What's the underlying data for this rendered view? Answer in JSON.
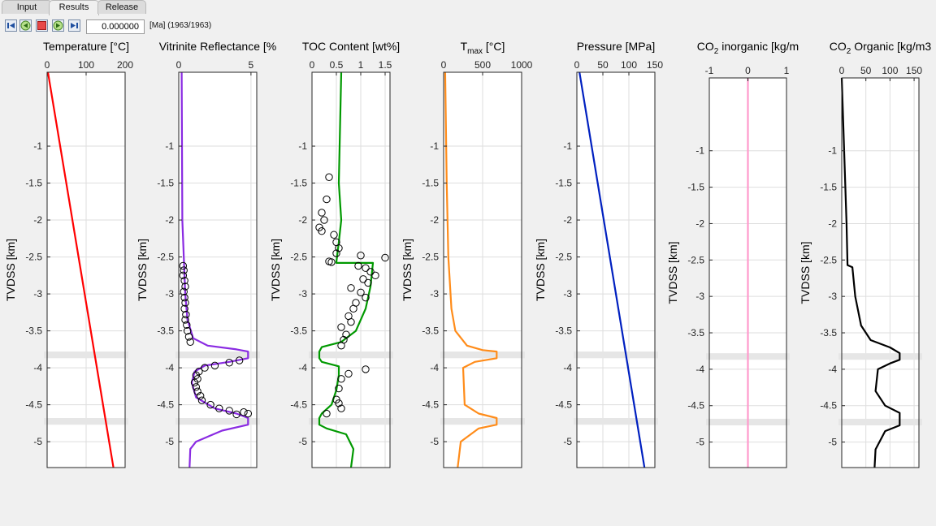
{
  "tabs": [
    {
      "label": "Input",
      "active": false
    },
    {
      "label": "Results",
      "active": true
    },
    {
      "label": "Release",
      "active": false
    }
  ],
  "toolbar": {
    "buttons": [
      {
        "name": "first-step-icon"
      },
      {
        "name": "step-back-icon"
      },
      {
        "name": "stop-icon"
      },
      {
        "name": "step-forward-icon"
      },
      {
        "name": "last-step-icon"
      }
    ],
    "time_value": "0.000000",
    "time_label": "[Ma] (1963/1963)"
  },
  "colors": {
    "temperature": "#ff0000",
    "vitrinite": "#8a2be2",
    "toc": "#009900",
    "tmax": "#ff8c1a",
    "pressure": "#0020c0",
    "co2_inorganic": "#ff99cc",
    "co2_organic": "#000000",
    "band": "#e6e6e6"
  },
  "chart_data": [
    {
      "type": "line",
      "title": "Temperature [°C]",
      "ylabel": "TVDSS [km]",
      "xlim": [
        0,
        200
      ],
      "xticks": [
        "0",
        "100",
        "200"
      ],
      "ylim": [
        -5.35,
        0
      ],
      "yticks": [
        "-1",
        "-1.5",
        "-2",
        "-2.5",
        "-3",
        "-3.5",
        "-4",
        "-4.5",
        "-5"
      ],
      "grid": true,
      "bands": [
        [
          -3.87,
          -3.78
        ],
        [
          -4.77,
          -4.68
        ]
      ],
      "series": [
        {
          "values": [
            {
              "x": 2,
              "y": 0
            },
            {
              "x": 170,
              "y": -5.35
            }
          ]
        }
      ]
    },
    {
      "type": "line",
      "title": "Vitrinite Reflectance [%",
      "ylabel": "TVDSS [km]",
      "xlim": [
        0,
        5.4
      ],
      "xticks": [
        "0",
        "5"
      ],
      "ylim": [
        -5.35,
        0
      ],
      "yticks": [
        "-1",
        "-1.5",
        "-2",
        "-2.5",
        "-3",
        "-3.5",
        "-4",
        "-4.5",
        "-5"
      ],
      "grid": true,
      "bands": [
        [
          -3.87,
          -3.78
        ],
        [
          -4.77,
          -4.68
        ]
      ],
      "series": [
        {
          "values": [
            {
              "x": 0.2,
              "y": 0
            },
            {
              "x": 0.25,
              "y": -2.0
            },
            {
              "x": 0.35,
              "y": -2.5
            },
            {
              "x": 0.45,
              "y": -3.0
            },
            {
              "x": 0.6,
              "y": -3.35
            },
            {
              "x": 1.0,
              "y": -3.6
            },
            {
              "x": 2.0,
              "y": -3.7
            },
            {
              "x": 4.0,
              "y": -3.75
            },
            {
              "x": 4.8,
              "y": -3.78
            },
            {
              "x": 4.8,
              "y": -3.87
            },
            {
              "x": 3.5,
              "y": -3.92
            },
            {
              "x": 1.8,
              "y": -3.97
            },
            {
              "x": 1.1,
              "y": -4.05
            },
            {
              "x": 0.9,
              "y": -4.2
            },
            {
              "x": 1.2,
              "y": -4.4
            },
            {
              "x": 2.5,
              "y": -4.55
            },
            {
              "x": 4.0,
              "y": -4.62
            },
            {
              "x": 4.8,
              "y": -4.68
            },
            {
              "x": 4.8,
              "y": -4.77
            },
            {
              "x": 3.0,
              "y": -4.85
            },
            {
              "x": 1.2,
              "y": -5.0
            },
            {
              "x": 0.8,
              "y": -5.1
            },
            {
              "x": 0.75,
              "y": -5.35
            }
          ]
        },
        {
          "type": "scatter",
          "values": [
            {
              "x": 0.3,
              "y": -2.62
            },
            {
              "x": 0.35,
              "y": -2.68
            },
            {
              "x": 0.3,
              "y": -2.75
            },
            {
              "x": 0.4,
              "y": -2.82
            },
            {
              "x": 0.45,
              "y": -2.9
            },
            {
              "x": 0.35,
              "y": -2.97
            },
            {
              "x": 0.4,
              "y": -3.05
            },
            {
              "x": 0.45,
              "y": -3.12
            },
            {
              "x": 0.4,
              "y": -3.2
            },
            {
              "x": 0.5,
              "y": -3.28
            },
            {
              "x": 0.45,
              "y": -3.35
            },
            {
              "x": 0.55,
              "y": -3.42
            },
            {
              "x": 0.6,
              "y": -3.5
            },
            {
              "x": 0.7,
              "y": -3.58
            },
            {
              "x": 0.8,
              "y": -3.65
            },
            {
              "x": 4.2,
              "y": -3.9
            },
            {
              "x": 3.5,
              "y": -3.93
            },
            {
              "x": 2.5,
              "y": -3.97
            },
            {
              "x": 1.8,
              "y": -4.0
            },
            {
              "x": 1.4,
              "y": -4.05
            },
            {
              "x": 1.2,
              "y": -4.1
            },
            {
              "x": 1.3,
              "y": -4.15
            },
            {
              "x": 1.1,
              "y": -4.2
            },
            {
              "x": 1.2,
              "y": -4.26
            },
            {
              "x": 1.3,
              "y": -4.32
            },
            {
              "x": 1.5,
              "y": -4.38
            },
            {
              "x": 1.6,
              "y": -4.44
            },
            {
              "x": 2.2,
              "y": -4.5
            },
            {
              "x": 2.8,
              "y": -4.55
            },
            {
              "x": 3.5,
              "y": -4.58
            },
            {
              "x": 4.5,
              "y": -4.6
            },
            {
              "x": 4.0,
              "y": -4.63
            },
            {
              "x": 4.8,
              "y": -4.62
            }
          ]
        }
      ]
    },
    {
      "type": "line",
      "title": "TOC Content [wt%]",
      "ylabel": "TVDSS [km]",
      "xlim": [
        0,
        1.6
      ],
      "xticks": [
        "0",
        "0.5",
        "1",
        "1.5"
      ],
      "ylim": [
        -5.35,
        0
      ],
      "yticks": [
        "-1",
        "-1.5",
        "-2",
        "-2.5",
        "-3",
        "-3.5",
        "-4",
        "-4.5",
        "-5"
      ],
      "grid": true,
      "bands": [
        [
          -3.87,
          -3.78
        ],
        [
          -4.77,
          -4.68
        ]
      ],
      "series": [
        {
          "values": [
            {
              "x": 0.6,
              "y": 0
            },
            {
              "x": 0.55,
              "y": -1.5
            },
            {
              "x": 0.6,
              "y": -2.0
            },
            {
              "x": 0.55,
              "y": -2.3
            },
            {
              "x": 0.5,
              "y": -2.57
            },
            {
              "x": 0.5,
              "y": -2.58
            },
            {
              "x": 1.25,
              "y": -2.58
            },
            {
              "x": 1.2,
              "y": -2.9
            },
            {
              "x": 1.1,
              "y": -3.2
            },
            {
              "x": 0.9,
              "y": -3.5
            },
            {
              "x": 0.6,
              "y": -3.65
            },
            {
              "x": 0.2,
              "y": -3.72
            },
            {
              "x": 0.15,
              "y": -3.78
            },
            {
              "x": 0.15,
              "y": -3.87
            },
            {
              "x": 0.2,
              "y": -3.92
            },
            {
              "x": 0.55,
              "y": -3.98
            },
            {
              "x": 0.55,
              "y": -4.1
            },
            {
              "x": 0.5,
              "y": -4.3
            },
            {
              "x": 0.4,
              "y": -4.5
            },
            {
              "x": 0.2,
              "y": -4.62
            },
            {
              "x": 0.15,
              "y": -4.68
            },
            {
              "x": 0.15,
              "y": -4.77
            },
            {
              "x": 0.3,
              "y": -4.82
            },
            {
              "x": 0.7,
              "y": -4.9
            },
            {
              "x": 0.85,
              "y": -5.1
            },
            {
              "x": 0.8,
              "y": -5.35
            }
          ]
        },
        {
          "type": "scatter",
          "values": [
            {
              "x": 0.35,
              "y": -1.42
            },
            {
              "x": 0.3,
              "y": -1.72
            },
            {
              "x": 0.2,
              "y": -1.9
            },
            {
              "x": 0.25,
              "y": -2.0
            },
            {
              "x": 0.15,
              "y": -2.1
            },
            {
              "x": 0.2,
              "y": -2.15
            },
            {
              "x": 0.45,
              "y": -2.2
            },
            {
              "x": 0.5,
              "y": -2.3
            },
            {
              "x": 0.55,
              "y": -2.38
            },
            {
              "x": 0.5,
              "y": -2.45
            },
            {
              "x": 0.35,
              "y": -2.56
            },
            {
              "x": 0.4,
              "y": -2.57
            },
            {
              "x": 1.0,
              "y": -2.48
            },
            {
              "x": 1.5,
              "y": -2.51
            },
            {
              "x": 0.95,
              "y": -2.62
            },
            {
              "x": 1.1,
              "y": -2.65
            },
            {
              "x": 1.2,
              "y": -2.7
            },
            {
              "x": 1.3,
              "y": -2.75
            },
            {
              "x": 1.05,
              "y": -2.8
            },
            {
              "x": 1.15,
              "y": -2.85
            },
            {
              "x": 0.8,
              "y": -2.92
            },
            {
              "x": 1.0,
              "y": -2.98
            },
            {
              "x": 1.1,
              "y": -3.05
            },
            {
              "x": 0.9,
              "y": -3.12
            },
            {
              "x": 0.85,
              "y": -3.2
            },
            {
              "x": 0.75,
              "y": -3.3
            },
            {
              "x": 0.8,
              "y": -3.38
            },
            {
              "x": 0.6,
              "y": -3.45
            },
            {
              "x": 0.7,
              "y": -3.55
            },
            {
              "x": 0.65,
              "y": -3.62
            },
            {
              "x": 0.6,
              "y": -3.7
            },
            {
              "x": 1.1,
              "y": -4.02
            },
            {
              "x": 0.75,
              "y": -4.08
            },
            {
              "x": 0.6,
              "y": -4.15
            },
            {
              "x": 0.55,
              "y": -4.28
            },
            {
              "x": 0.5,
              "y": -4.43
            },
            {
              "x": 0.55,
              "y": -4.48
            },
            {
              "x": 0.6,
              "y": -4.55
            },
            {
              "x": 0.3,
              "y": -4.62
            }
          ]
        }
      ]
    },
    {
      "type": "line",
      "title": "T_max [°C]",
      "ylabel": "TVDSS [km]",
      "xlim": [
        0,
        1000
      ],
      "xticks": [
        "0",
        "500",
        "1000"
      ],
      "ylim": [
        -5.35,
        0
      ],
      "yticks": [
        "-1",
        "-1.5",
        "-2",
        "-2.5",
        "-3",
        "-3.5",
        "-4",
        "-4.5",
        "-5"
      ],
      "grid": true,
      "bands": [
        [
          -3.87,
          -3.78
        ],
        [
          -4.77,
          -4.68
        ]
      ],
      "series": [
        {
          "values": [
            {
              "x": 20,
              "y": 0
            },
            {
              "x": 40,
              "y": -1.5
            },
            {
              "x": 60,
              "y": -2.5
            },
            {
              "x": 100,
              "y": -3.2
            },
            {
              "x": 150,
              "y": -3.5
            },
            {
              "x": 300,
              "y": -3.7
            },
            {
              "x": 500,
              "y": -3.76
            },
            {
              "x": 680,
              "y": -3.78
            },
            {
              "x": 680,
              "y": -3.87
            },
            {
              "x": 400,
              "y": -3.92
            },
            {
              "x": 250,
              "y": -4.0
            },
            {
              "x": 270,
              "y": -4.5
            },
            {
              "x": 450,
              "y": -4.62
            },
            {
              "x": 680,
              "y": -4.68
            },
            {
              "x": 680,
              "y": -4.77
            },
            {
              "x": 450,
              "y": -4.82
            },
            {
              "x": 220,
              "y": -5.0
            },
            {
              "x": 180,
              "y": -5.35
            }
          ]
        }
      ]
    },
    {
      "type": "line",
      "title": "Pressure [MPa]",
      "ylabel": "TVDSS [km]",
      "xlim": [
        0,
        150
      ],
      "xticks": [
        "0",
        "50",
        "100",
        "150"
      ],
      "ylim": [
        -5.35,
        0
      ],
      "yticks": [
        "-1",
        "-1.5",
        "-2",
        "-2.5",
        "-3",
        "-3.5",
        "-4",
        "-4.5",
        "-5"
      ],
      "grid": true,
      "bands": [
        [
          -3.87,
          -3.78
        ],
        [
          -4.77,
          -4.68
        ]
      ],
      "series": [
        {
          "values": [
            {
              "x": 5,
              "y": 0
            },
            {
              "x": 130,
              "y": -5.35
            }
          ]
        }
      ]
    },
    {
      "type": "line",
      "title": "CO_2 inorganic [kg/m",
      "ylabel": "TVDSS [km]",
      "xlim": [
        -1,
        1
      ],
      "xticks": [
        "-1",
        "0",
        "1"
      ],
      "ylim": [
        -5.35,
        0
      ],
      "yticks": [
        "-1",
        "-1.5",
        "-2",
        "-2.5",
        "-3",
        "-3.5",
        "-4",
        "-4.5",
        "-5"
      ],
      "grid": true,
      "bands": [
        [
          -3.87,
          -3.78
        ],
        [
          -4.77,
          -4.68
        ]
      ],
      "series": [
        {
          "values": [
            {
              "x": 0,
              "y": 0
            },
            {
              "x": 0,
              "y": -5.35
            }
          ]
        }
      ]
    },
    {
      "type": "line",
      "title": "CO_2 Organic [kg/m3",
      "ylabel": "TVDSS [km]",
      "xlim": [
        0,
        160
      ],
      "xticks": [
        "0",
        "50",
        "100",
        "150"
      ],
      "ylim": [
        -5.35,
        0
      ],
      "yticks": [
        "-1",
        "-1.5",
        "-2",
        "-2.5",
        "-3",
        "-3.5",
        "-4",
        "-4.5",
        "-5"
      ],
      "grid": true,
      "bands": [
        [
          -3.87,
          -3.78
        ],
        [
          -4.77,
          -4.68
        ]
      ],
      "series": [
        {
          "values": [
            {
              "x": 0,
              "y": 0
            },
            {
              "x": 10,
              "y": -2.0
            },
            {
              "x": 12,
              "y": -2.57
            },
            {
              "x": 22,
              "y": -2.6
            },
            {
              "x": 28,
              "y": -3.0
            },
            {
              "x": 40,
              "y": -3.4
            },
            {
              "x": 60,
              "y": -3.6
            },
            {
              "x": 100,
              "y": -3.7
            },
            {
              "x": 120,
              "y": -3.78
            },
            {
              "x": 120,
              "y": -3.87
            },
            {
              "x": 100,
              "y": -3.92
            },
            {
              "x": 75,
              "y": -4.0
            },
            {
              "x": 70,
              "y": -4.3
            },
            {
              "x": 90,
              "y": -4.5
            },
            {
              "x": 120,
              "y": -4.6
            },
            {
              "x": 120,
              "y": -4.77
            },
            {
              "x": 90,
              "y": -4.85
            },
            {
              "x": 70,
              "y": -5.1
            },
            {
              "x": 68,
              "y": -5.35
            }
          ]
        }
      ]
    }
  ]
}
